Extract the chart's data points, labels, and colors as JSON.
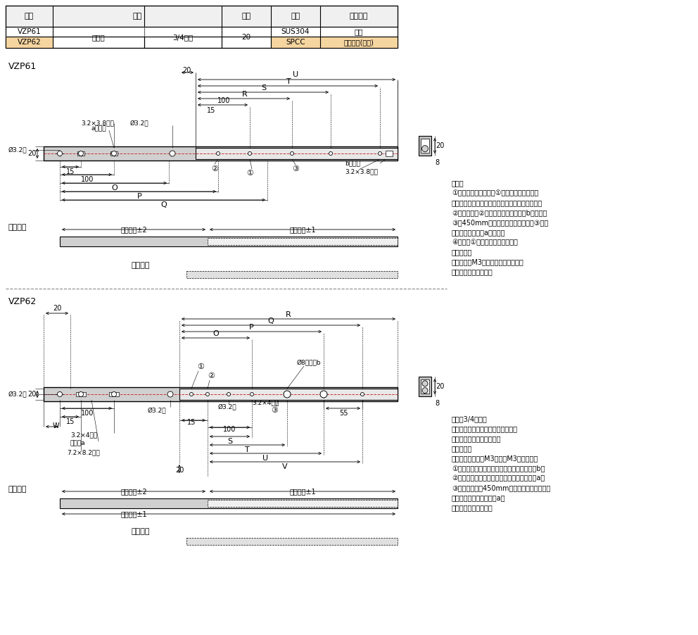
{
  "bg_color": "#ffffff",
  "highlight_color": "#f5d5a0",
  "gray_rail": "#d8d8d8",
  "light_rail": "#f0f0f0",
  "centerline_color": "#cc3333",
  "notes_vzp61": [
    "注意：",
    "①小表所示的承重量为①以为的所有安装孔用",
    "螺钉固定、抽屉侧滑轨伸出时滑轨中部的静载荷。",
    "②固定安装孔②时，将内轨后移并使用b通道孔；",
    "③在450mm以上的滑轨上固定安装孔③时，",
    "将内轨后移并使用a通道孔；",
    "④安装孔①在一般安装时不使用。",
    "按根销售。",
    "推荐螺钉：M3扁头结合或圆头螺钉。",
    "承载与重量仅供参考。"
  ],
  "notes_vzp62": [
    "特点：3/4伸展。",
    "注意：下表所示的承重为抽屉侧滑轨",
    "伸出时滑轨中部的静载荷。",
    "按根销售。",
    "推荐螺钉：请使用M3扁头或M3圆头螺钉。",
    "①的安装孔可在内轨向后方滑动后使用通道孔b。",
    "②的安装孔可在内轨向后方滑动后使用通道孔a。",
    "③的安装孔对于450mm以上的滑轨，可在内轨",
    "向后方滑动后使用通道孔a。",
    "承载与重量仅供参考。"
  ]
}
